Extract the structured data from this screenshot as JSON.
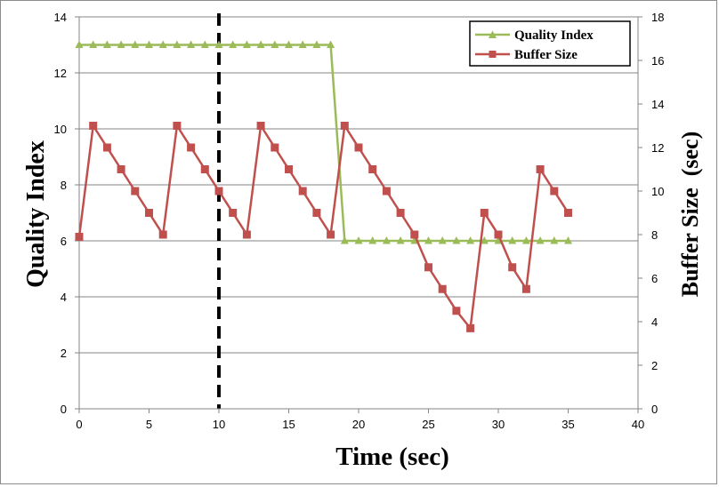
{
  "chart_data": {
    "type": "line",
    "xlabel": "Time (sec)",
    "ylabel": "Quality Index",
    "y2label": "Buffer Size  (sec)",
    "xlim": [
      0,
      40
    ],
    "ylim": [
      0,
      14
    ],
    "y2lim": [
      0,
      18
    ],
    "xticks": [
      0,
      5,
      10,
      15,
      20,
      25,
      30,
      35,
      40
    ],
    "yticks": [
      0,
      2,
      4,
      6,
      8,
      10,
      12,
      14
    ],
    "y2ticks": [
      0,
      2,
      4,
      6,
      8,
      10,
      12,
      14,
      16,
      18
    ],
    "grid": true,
    "legend_position": "top-right",
    "vertical_marker": {
      "x": 10,
      "style": "dashed"
    },
    "series": [
      {
        "name": "Quality Index",
        "axis": "left",
        "color": "#9bbb59",
        "marker": "triangle",
        "x": [
          0,
          1,
          2,
          3,
          4,
          5,
          6,
          7,
          8,
          9,
          10,
          11,
          12,
          13,
          14,
          15,
          16,
          17,
          18,
          19,
          20,
          21,
          22,
          23,
          24,
          25,
          26,
          27,
          28,
          29,
          30,
          31,
          32,
          33,
          34,
          35
        ],
        "values": [
          13,
          13,
          13,
          13,
          13,
          13,
          13,
          13,
          13,
          13,
          13,
          13,
          13,
          13,
          13,
          13,
          13,
          13,
          13,
          6,
          6,
          6,
          6,
          6,
          6,
          6,
          6,
          6,
          6,
          6,
          6,
          6,
          6,
          6,
          6,
          6
        ]
      },
      {
        "name": "Buffer Size",
        "axis": "right",
        "color": "#c0504d",
        "marker": "square",
        "x": [
          0,
          1,
          2,
          3,
          4,
          5,
          6,
          7,
          8,
          9,
          10,
          11,
          12,
          13,
          14,
          15,
          16,
          17,
          18,
          19,
          20,
          21,
          22,
          23,
          24,
          25,
          26,
          27,
          28,
          29,
          30,
          31,
          32,
          33,
          34,
          35
        ],
        "values": [
          7.9,
          13,
          12,
          11,
          10,
          9,
          8,
          13,
          12,
          11,
          10,
          9,
          8,
          13,
          12,
          11,
          10,
          9,
          8,
          13,
          12,
          11,
          10,
          9,
          8,
          6.5,
          5.5,
          4.5,
          3.7,
          9,
          8,
          6.5,
          5.5,
          11,
          10,
          9
        ]
      }
    ]
  }
}
